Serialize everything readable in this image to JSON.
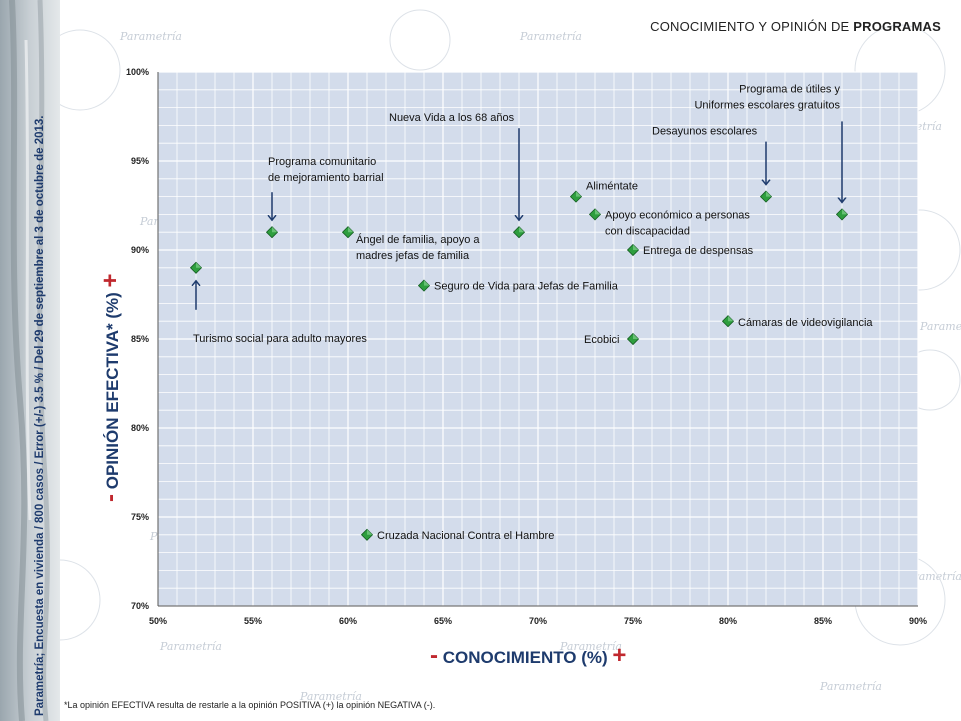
{
  "header": {
    "title_prefix": "CONOCIMIENTO Y OPINIÓN DE ",
    "title_bold": "PROGRAMAS"
  },
  "side_note": "Parametría; Encuesta en vivienda / 800 casos / Error (+/-) 3.5 % / Del 29 de septiembre al 3 de octubre de 2013.",
  "footnote": "*La opinión EFECTIVA resulta de restarle a la opinión POSITIVA (+) la opinión NEGATIVA (-).",
  "watermark": "Parametría",
  "axis_titles": {
    "x_minus": "-",
    "x_label": " CONOCIMIENTO (%) ",
    "x_plus": "+",
    "y_minus": "-",
    "y_label": " OPINIÓN EFECTIVA* (%) ",
    "y_plus": "+"
  },
  "colors": {
    "plot_bg": "#d3dceb",
    "grid": "#ffffff",
    "marker": "#2e9e3e",
    "arrow": "#1e3b6d",
    "axis_title": "#1e3b6d",
    "plus_minus": "#c0282e"
  },
  "chart_data": {
    "type": "scatter",
    "title": "CONOCIMIENTO Y OPINIÓN DE PROGRAMAS",
    "xlabel": "CONOCIMIENTO (%)",
    "ylabel": "OPINIÓN EFECTIVA* (%)",
    "xlim": [
      50,
      90
    ],
    "ylim": [
      70,
      100
    ],
    "x_ticks": [
      "50%",
      "55%",
      "60%",
      "65%",
      "70%",
      "75%",
      "80%",
      "85%",
      "90%"
    ],
    "y_ticks": [
      "70%",
      "75%",
      "80%",
      "85%",
      "90%",
      "95%",
      "100%"
    ],
    "grid": true,
    "points": [
      {
        "label": "Turismo social para adulto mayores",
        "x": 52,
        "y": 89
      },
      {
        "label": "Programa comunitario de mejoramiento barrial",
        "x": 56,
        "y": 91
      },
      {
        "label": "Ángel de familia, apoyo a madres jefas de familia",
        "x": 60,
        "y": 91
      },
      {
        "label": "Seguro de Vida para Jefas de Familia",
        "x": 64,
        "y": 88
      },
      {
        "label": "Nueva Vida a los 68 años",
        "x": 69,
        "y": 91
      },
      {
        "label": "Aliméntate",
        "x": 72,
        "y": 93
      },
      {
        "label": "Apoyo económico a personas con discapacidad",
        "x": 73,
        "y": 92
      },
      {
        "label": "Entrega de despensas",
        "x": 75,
        "y": 90
      },
      {
        "label": "Ecobici",
        "x": 75,
        "y": 85
      },
      {
        "label": "Cámaras de videovigilancia",
        "x": 80,
        "y": 86
      },
      {
        "label": "Desayunos escolares",
        "x": 82,
        "y": 93
      },
      {
        "label": "Programa de útiles y Uniformes escolares gratuitos",
        "x": 86,
        "y": 92
      },
      {
        "label": "Cruzada Nacional Contra el Hambre",
        "x": 61,
        "y": 74
      }
    ]
  }
}
